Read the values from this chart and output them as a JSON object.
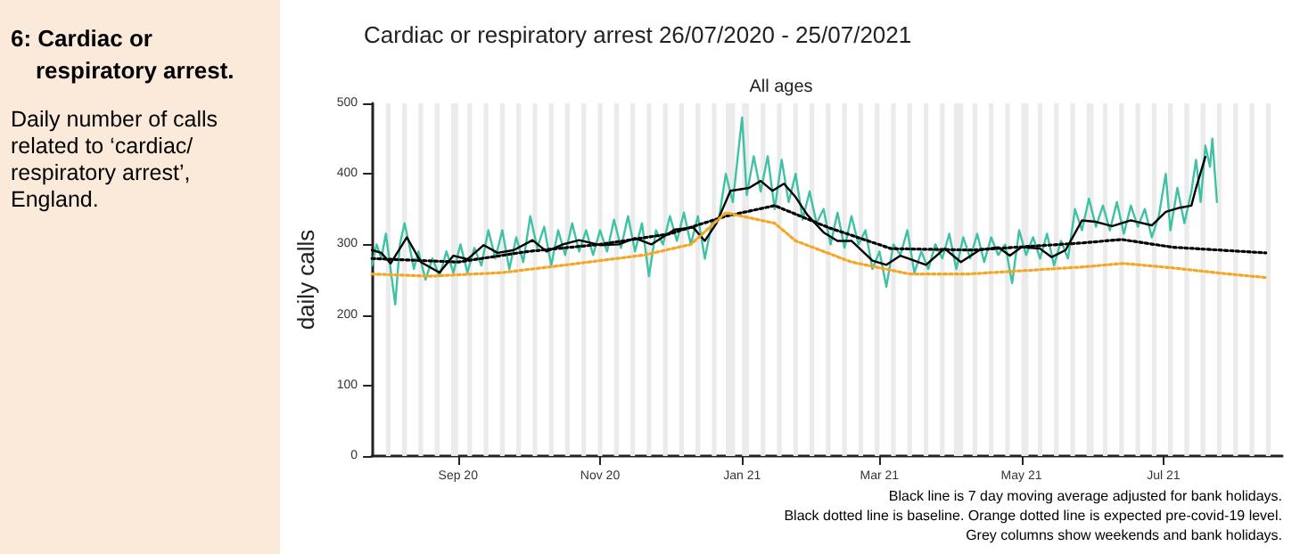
{
  "chart_data": {
    "type": "line",
    "title": "Cardiac or respiratory arrest 26/07/2020 - 25/07/2021",
    "subtitle": "All ages",
    "ylabel": "daily calls",
    "annotations": [
      "6: Cardiac or respiratory  arrest.",
      "Daily number of calls related to ‘cardiac/ respiratory arrest’, England.",
      "Black line is 7 day moving average adjusted for bank holidays.",
      "Black dotted line is baseline. Orange dotted line is expected pre-covid-19 level.",
      "Grey columns show weekends and bank holidays."
    ],
    "xlim": [
      "2020-07-26",
      "2021-08-21"
    ],
    "xticks": [
      {
        "value": "2020-09-01",
        "label": "Sep 20"
      },
      {
        "value": "2020-11-01",
        "label": "Nov 20"
      },
      {
        "value": "2021-01-01",
        "label": "Jan 21"
      },
      {
        "value": "2021-03-01",
        "label": "Mar 21"
      },
      {
        "value": "2021-05-01",
        "label": "May 21"
      },
      {
        "value": "2021-07-01",
        "label": "Jul 21"
      }
    ],
    "ylim": [
      0,
      500
    ],
    "yticks": [
      0,
      100,
      200,
      300,
      400,
      500
    ],
    "grid": false,
    "marker": "none",
    "bands": [
      {
        "axis": "x",
        "from": "2020-08-01",
        "to": "2020-08-03",
        "color": "#ebebeb"
      },
      {
        "axis": "x",
        "from": "2020-08-08",
        "to": "2020-08-10",
        "color": "#ebebeb"
      },
      {
        "axis": "x",
        "from": "2020-08-15",
        "to": "2020-08-17",
        "color": "#ebebeb"
      },
      {
        "axis": "x",
        "from": "2020-08-22",
        "to": "2020-08-24",
        "color": "#ebebeb"
      },
      {
        "axis": "x",
        "from": "2020-08-29",
        "to": "2020-09-01",
        "color": "#ebebeb"
      },
      {
        "axis": "x",
        "from": "2020-09-05",
        "to": "2020-09-07",
        "color": "#ebebeb"
      },
      {
        "axis": "x",
        "from": "2020-09-12",
        "to": "2020-09-14",
        "color": "#ebebeb"
      },
      {
        "axis": "x",
        "from": "2020-09-19",
        "to": "2020-09-21",
        "color": "#ebebeb"
      },
      {
        "axis": "x",
        "from": "2020-09-26",
        "to": "2020-09-28",
        "color": "#ebebeb"
      },
      {
        "axis": "x",
        "from": "2020-10-03",
        "to": "2020-10-05",
        "color": "#ebebeb"
      },
      {
        "axis": "x",
        "from": "2020-10-10",
        "to": "2020-10-12",
        "color": "#ebebeb"
      },
      {
        "axis": "x",
        "from": "2020-10-17",
        "to": "2020-10-19",
        "color": "#ebebeb"
      },
      {
        "axis": "x",
        "from": "2020-10-24",
        "to": "2020-10-26",
        "color": "#ebebeb"
      },
      {
        "axis": "x",
        "from": "2020-10-31",
        "to": "2020-11-02",
        "color": "#ebebeb"
      },
      {
        "axis": "x",
        "from": "2020-11-07",
        "to": "2020-11-09",
        "color": "#ebebeb"
      },
      {
        "axis": "x",
        "from": "2020-11-14",
        "to": "2020-11-16",
        "color": "#ebebeb"
      },
      {
        "axis": "x",
        "from": "2020-11-21",
        "to": "2020-11-23",
        "color": "#ebebeb"
      },
      {
        "axis": "x",
        "from": "2020-11-28",
        "to": "2020-11-30",
        "color": "#ebebeb"
      },
      {
        "axis": "x",
        "from": "2020-12-05",
        "to": "2020-12-07",
        "color": "#ebebeb"
      },
      {
        "axis": "x",
        "from": "2020-12-12",
        "to": "2020-12-14",
        "color": "#ebebeb"
      },
      {
        "axis": "x",
        "from": "2020-12-19",
        "to": "2020-12-21",
        "color": "#ebebeb"
      },
      {
        "axis": "x",
        "from": "2020-12-25",
        "to": "2020-12-29",
        "color": "#ebebeb"
      },
      {
        "axis": "x",
        "from": "2021-01-01",
        "to": "2021-01-04",
        "color": "#ebebeb"
      },
      {
        "axis": "x",
        "from": "2021-01-09",
        "to": "2021-01-11",
        "color": "#ebebeb"
      },
      {
        "axis": "x",
        "from": "2021-01-16",
        "to": "2021-01-18",
        "color": "#ebebeb"
      },
      {
        "axis": "x",
        "from": "2021-01-23",
        "to": "2021-01-25",
        "color": "#ebebeb"
      },
      {
        "axis": "x",
        "from": "2021-01-30",
        "to": "2021-02-01",
        "color": "#ebebeb"
      },
      {
        "axis": "x",
        "from": "2021-02-06",
        "to": "2021-02-08",
        "color": "#ebebeb"
      },
      {
        "axis": "x",
        "from": "2021-02-13",
        "to": "2021-02-15",
        "color": "#ebebeb"
      },
      {
        "axis": "x",
        "from": "2021-02-20",
        "to": "2021-02-22",
        "color": "#ebebeb"
      },
      {
        "axis": "x",
        "from": "2021-02-27",
        "to": "2021-03-01",
        "color": "#ebebeb"
      },
      {
        "axis": "x",
        "from": "2021-03-06",
        "to": "2021-03-08",
        "color": "#ebebeb"
      },
      {
        "axis": "x",
        "from": "2021-03-13",
        "to": "2021-03-15",
        "color": "#ebebeb"
      },
      {
        "axis": "x",
        "from": "2021-03-20",
        "to": "2021-03-22",
        "color": "#ebebeb"
      },
      {
        "axis": "x",
        "from": "2021-03-27",
        "to": "2021-03-29",
        "color": "#ebebeb"
      },
      {
        "axis": "x",
        "from": "2021-04-02",
        "to": "2021-04-06",
        "color": "#ebebeb"
      },
      {
        "axis": "x",
        "from": "2021-04-10",
        "to": "2021-04-12",
        "color": "#ebebeb"
      },
      {
        "axis": "x",
        "from": "2021-04-17",
        "to": "2021-04-19",
        "color": "#ebebeb"
      },
      {
        "axis": "x",
        "from": "2021-04-24",
        "to": "2021-04-26",
        "color": "#ebebeb"
      },
      {
        "axis": "x",
        "from": "2021-05-01",
        "to": "2021-05-04",
        "color": "#ebebeb"
      },
      {
        "axis": "x",
        "from": "2021-05-08",
        "to": "2021-05-10",
        "color": "#ebebeb"
      },
      {
        "axis": "x",
        "from": "2021-05-15",
        "to": "2021-05-17",
        "color": "#ebebeb"
      },
      {
        "axis": "x",
        "from": "2021-05-22",
        "to": "2021-05-24",
        "color": "#ebebeb"
      },
      {
        "axis": "x",
        "from": "2021-05-29",
        "to": "2021-06-01",
        "color": "#ebebeb"
      },
      {
        "axis": "x",
        "from": "2021-06-05",
        "to": "2021-06-07",
        "color": "#ebebeb"
      },
      {
        "axis": "x",
        "from": "2021-06-12",
        "to": "2021-06-14",
        "color": "#ebebeb"
      },
      {
        "axis": "x",
        "from": "2021-06-19",
        "to": "2021-06-21",
        "color": "#ebebeb"
      },
      {
        "axis": "x",
        "from": "2021-06-26",
        "to": "2021-06-28",
        "color": "#ebebeb"
      },
      {
        "axis": "x",
        "from": "2021-07-03",
        "to": "2021-07-05",
        "color": "#ebebeb"
      },
      {
        "axis": "x",
        "from": "2021-07-10",
        "to": "2021-07-12",
        "color": "#ebebeb"
      },
      {
        "axis": "x",
        "from": "2021-07-17",
        "to": "2021-07-19",
        "color": "#ebebeb"
      },
      {
        "axis": "x",
        "from": "2021-07-24",
        "to": "2021-07-26",
        "color": "#ebebeb"
      },
      {
        "axis": "x",
        "from": "2021-07-31",
        "to": "2021-08-02",
        "color": "#ebebeb"
      },
      {
        "axis": "x",
        "from": "2021-08-07",
        "to": "2021-08-09",
        "color": "#ebebeb"
      },
      {
        "axis": "x",
        "from": "2021-08-14",
        "to": "2021-08-16",
        "color": "#ebebeb"
      }
    ],
    "series": [
      {
        "type": "line",
        "color": "#3fc1a5",
        "line_style": "solid",
        "x": [
          "2020-07-26",
          "2020-07-28",
          "2020-07-30",
          "2020-08-01",
          "2020-08-03",
          "2020-08-05",
          "2020-08-07",
          "2020-08-09",
          "2020-08-11",
          "2020-08-13",
          "2020-08-15",
          "2020-08-18",
          "2020-08-21",
          "2020-08-24",
          "2020-08-27",
          "2020-08-30",
          "2020-09-02",
          "2020-09-05",
          "2020-09-08",
          "2020-09-11",
          "2020-09-14",
          "2020-09-17",
          "2020-09-20",
          "2020-09-23",
          "2020-09-26",
          "2020-09-29",
          "2020-10-02",
          "2020-10-05",
          "2020-10-08",
          "2020-10-11",
          "2020-10-14",
          "2020-10-17",
          "2020-10-20",
          "2020-10-23",
          "2020-10-26",
          "2020-10-29",
          "2020-11-01",
          "2020-11-04",
          "2020-11-07",
          "2020-11-10",
          "2020-11-13",
          "2020-11-16",
          "2020-11-19",
          "2020-11-22",
          "2020-11-25",
          "2020-11-28",
          "2020-12-01",
          "2020-12-04",
          "2020-12-07",
          "2020-12-10",
          "2020-12-13",
          "2020-12-16",
          "2020-12-19",
          "2020-12-22",
          "2020-12-25",
          "2020-12-28",
          "2021-01-01",
          "2021-01-03",
          "2021-01-06",
          "2021-01-09",
          "2021-01-12",
          "2021-01-15",
          "2021-01-18",
          "2021-01-21",
          "2021-01-24",
          "2021-01-27",
          "2021-01-30",
          "2021-02-02",
          "2021-02-05",
          "2021-02-08",
          "2021-02-11",
          "2021-02-14",
          "2021-02-17",
          "2021-02-20",
          "2021-02-23",
          "2021-02-26",
          "2021-03-01",
          "2021-03-04",
          "2021-03-07",
          "2021-03-10",
          "2021-03-13",
          "2021-03-16",
          "2021-03-19",
          "2021-03-22",
          "2021-03-25",
          "2021-03-28",
          "2021-03-31",
          "2021-04-03",
          "2021-04-06",
          "2021-04-09",
          "2021-04-12",
          "2021-04-15",
          "2021-04-18",
          "2021-04-21",
          "2021-04-24",
          "2021-04-27",
          "2021-04-30",
          "2021-05-03",
          "2021-05-06",
          "2021-05-09",
          "2021-05-12",
          "2021-05-15",
          "2021-05-18",
          "2021-05-21",
          "2021-05-24",
          "2021-05-27",
          "2021-05-30",
          "2021-06-02",
          "2021-06-05",
          "2021-06-08",
          "2021-06-11",
          "2021-06-14",
          "2021-06-17",
          "2021-06-20",
          "2021-06-23",
          "2021-06-26",
          "2021-06-29",
          "2021-07-02",
          "2021-07-04",
          "2021-07-07",
          "2021-07-10",
          "2021-07-13",
          "2021-07-15",
          "2021-07-17",
          "2021-07-19",
          "2021-07-21",
          "2021-07-22",
          "2021-07-24"
        ],
        "values": [
          270,
          300,
          280,
          315,
          265,
          215,
          300,
          330,
          300,
          265,
          290,
          250,
          280,
          255,
          290,
          260,
          300,
          260,
          295,
          270,
          320,
          280,
          320,
          265,
          310,
          275,
          340,
          295,
          325,
          270,
          320,
          285,
          330,
          290,
          320,
          285,
          320,
          290,
          335,
          295,
          340,
          290,
          330,
          255,
          320,
          300,
          340,
          305,
          345,
          300,
          340,
          280,
          330,
          335,
          400,
          360,
          480,
          370,
          425,
          375,
          425,
          350,
          420,
          360,
          400,
          335,
          375,
          330,
          350,
          300,
          345,
          295,
          340,
          300,
          320,
          265,
          290,
          240,
          300,
          285,
          320,
          260,
          290,
          265,
          300,
          280,
          315,
          265,
          310,
          280,
          315,
          275,
          310,
          285,
          300,
          245,
          320,
          285,
          310,
          280,
          315,
          270,
          305,
          280,
          350,
          320,
          365,
          325,
          355,
          320,
          360,
          315,
          355,
          325,
          350,
          310,
          340,
          400,
          320,
          380,
          330,
          375,
          420,
          360,
          440,
          410,
          450,
          360
        ]
      },
      {
        "type": "line",
        "color": "#000000",
        "line_style": "solid",
        "x": [
          "2020-07-26",
          "2020-07-30",
          "2020-08-03",
          "2020-08-10",
          "2020-08-16",
          "2020-08-24",
          "2020-08-30",
          "2020-09-05",
          "2020-09-12",
          "2020-09-18",
          "2020-09-25",
          "2020-10-03",
          "2020-10-09",
          "2020-10-16",
          "2020-10-23",
          "2020-11-01",
          "2020-11-09",
          "2020-11-16",
          "2020-11-23",
          "2020-12-03",
          "2020-12-11",
          "2020-12-16",
          "2020-12-21",
          "2020-12-27",
          "2021-01-04",
          "2021-01-09",
          "2021-01-14",
          "2021-01-19",
          "2021-01-24",
          "2021-01-29",
          "2021-02-05",
          "2021-02-11",
          "2021-02-17",
          "2021-02-26",
          "2021-03-04",
          "2021-03-10",
          "2021-03-21",
          "2021-03-29",
          "2021-04-05",
          "2021-04-13",
          "2021-04-21",
          "2021-04-26",
          "2021-05-01",
          "2021-05-09",
          "2021-05-14",
          "2021-05-20",
          "2021-05-27",
          "2021-06-02",
          "2021-06-09",
          "2021-06-17",
          "2021-06-26",
          "2021-07-02",
          "2021-07-08",
          "2021-07-13",
          "2021-07-15",
          "2021-07-19"
        ],
        "values": [
          292,
          288,
          273,
          310,
          275,
          260,
          284,
          279,
          299,
          288,
          292,
          306,
          290,
          300,
          306,
          299,
          300,
          309,
          300,
          321,
          324,
          305,
          330,
          376,
          380,
          390,
          376,
          386,
          367,
          342,
          317,
          305,
          305,
          277,
          271,
          284,
          271,
          294,
          275,
          292,
          296,
          284,
          296,
          294,
          282,
          292,
          334,
          332,
          326,
          334,
          327,
          346,
          352,
          355,
          380,
          424
        ]
      },
      {
        "type": "line",
        "color": "#000000",
        "line_style": "dotted",
        "x": [
          "2020-07-26",
          "2020-09-01",
          "2020-10-01",
          "2020-11-01",
          "2020-12-01",
          "2020-12-25",
          "2021-01-15",
          "2021-02-07",
          "2021-03-06",
          "2021-04-10",
          "2021-05-27",
          "2021-06-13",
          "2021-07-05",
          "2021-08-14"
        ],
        "values": [
          280,
          275,
          290,
          300,
          315,
          340,
          355,
          324,
          294,
          292,
          302,
          307,
          296,
          288
        ]
      },
      {
        "type": "line",
        "color": "#f5a623",
        "line_style": "dotted",
        "x": [
          "2020-07-26",
          "2020-08-20",
          "2020-09-20",
          "2020-10-20",
          "2020-11-20",
          "2020-12-10",
          "2020-12-25",
          "2021-01-15",
          "2021-01-24",
          "2021-02-17",
          "2021-03-14",
          "2021-04-08",
          "2021-05-03",
          "2021-05-27",
          "2021-06-14",
          "2021-07-04",
          "2021-07-29",
          "2021-08-14"
        ],
        "values": [
          258,
          255,
          260,
          272,
          285,
          300,
          345,
          330,
          305,
          275,
          258,
          258,
          263,
          268,
          273,
          267,
          258,
          253
        ]
      }
    ]
  }
}
